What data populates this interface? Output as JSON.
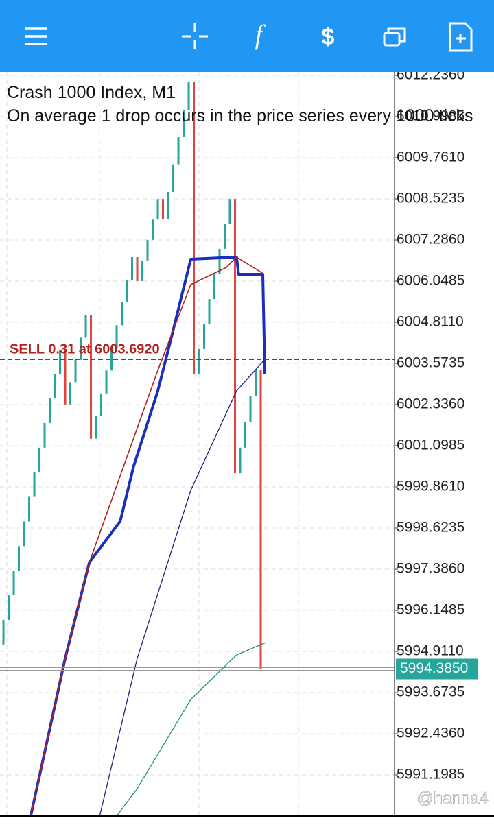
{
  "chart_data": {
    "type": "candlestick",
    "title": "Crash 1000 Index, M1",
    "subtitle": "On average 1 drop occurs in the price series every 1000 ticks",
    "open": [
      5995.12,
      5995.86,
      5996.6,
      5997.34,
      5998.08,
      5998.82,
      5999.56,
      6000.3,
      6001.04,
      6001.78,
      6002.52,
      6003.26,
      6003.99,
      6002.34,
      6003.01,
      6003.68,
      6004.35,
      6005.02,
      6001.31,
      6001.99,
      6002.67,
      6003.36,
      6004.04,
      6004.72,
      6005.41,
      6006.09,
      6006.77,
      6006.05,
      6006.67,
      6007.29,
      6007.9,
      6008.52,
      6007.91,
      6008.73,
      6009.56,
      6010.38,
      6011.2,
      6012.03,
      6003.26,
      6004.01,
      6004.76,
      6005.51,
      6006.27,
      6007.02,
      6007.77,
      6008.52,
      6000.27,
      6001.04,
      6001.82,
      6002.59,
      6003.37
    ],
    "close": [
      5995.86,
      5996.6,
      5997.34,
      5998.08,
      5998.82,
      5999.56,
      6000.3,
      6001.04,
      6001.78,
      6002.52,
      6003.26,
      6003.99,
      6002.34,
      6003.01,
      6003.68,
      6004.35,
      6005.02,
      6001.31,
      6001.99,
      6002.67,
      6003.36,
      6004.04,
      6004.72,
      6005.41,
      6006.09,
      6006.77,
      6006.05,
      6006.67,
      6007.29,
      6007.9,
      6008.52,
      6007.91,
      6008.73,
      6009.56,
      6010.38,
      6011.2,
      6012.03,
      6003.26,
      6004.01,
      6004.76,
      6005.51,
      6006.27,
      6007.02,
      6007.77,
      6008.52,
      6000.27,
      6001.04,
      6001.82,
      6002.59,
      6003.37,
      5994.385
    ],
    "up_color": "#26a69a",
    "down_color": "#e0443e",
    "lines": [
      {
        "color": "#1a2fbf",
        "width": 4,
        "x": [
          5.3,
          12,
          16.7,
          22.7,
          25.3,
          30,
          32.7,
          36.4,
          45.3,
          45.7,
          50.4,
          50.8
        ],
        "values": [
          5989.961,
          5994.705,
          5997.592,
          5998.83,
          6000.48,
          6002.749,
          6004.399,
          6006.709,
          6006.771,
          6006.255,
          6006.255,
          6003.264
        ]
      },
      {
        "color": "#b0201a",
        "width": 1.6,
        "x": [
          5.3,
          12,
          16.7,
          30,
          36.4,
          43.3,
          45.3,
          50.7
        ],
        "values": [
          5989.961,
          5994.705,
          5997.592,
          6003.367,
          6005.945,
          6006.461,
          6006.771,
          6006.255
        ]
      },
      {
        "color": "#1c1f7a",
        "width": 1.3,
        "x": [
          18.7,
          26,
          36.4,
          45.3,
          50.7
        ],
        "values": [
          5989.961,
          5994.705,
          5999.758,
          6002.749,
          6003.677
        ]
      },
      {
        "color": "#1e8f84",
        "width": 1.3,
        "x": [
          22,
          26,
          36.4,
          45.3,
          51
        ],
        "values": [
          5989.961,
          5990.786,
          5993.467,
          5994.808,
          5995.179
        ]
      }
    ],
    "xlim": [
      -0.67,
      76
    ],
    "ylim": [
      5989.961,
      6012.339
    ],
    "yticks": [
      {
        "value": 6012.236,
        "label": "6012.2360"
      },
      6010.9985,
      {
        "value": 6009.761,
        "label": "6009.7610"
      },
      6008.5235,
      {
        "value": 6007.286,
        "label": "6007.2860"
      },
      6006.0485,
      {
        "value": 6004.811,
        "label": "6004.8110"
      },
      6003.5735,
      {
        "value": 6002.336,
        "label": "6002.3360"
      },
      6001.0985,
      {
        "value": 5999.861,
        "label": "5999.8610"
      },
      5998.6235,
      {
        "value": 5997.386,
        "label": "5997.3860"
      },
      5996.1485,
      {
        "value": 5994.911,
        "label": "5994.9110"
      },
      5993.6735,
      {
        "value": 5992.436,
        "label": "5992.4360"
      },
      5991.1985
    ],
    "grid": true,
    "current_price": {
      "value": 5994.385,
      "label": "5994.3850",
      "color": "#26a69a"
    },
    "sell_line": {
      "value": 6003.692,
      "label": "SELL 0.31 at 6003.6920",
      "color": "#b3201c"
    },
    "watermark": "@hanna4"
  }
}
